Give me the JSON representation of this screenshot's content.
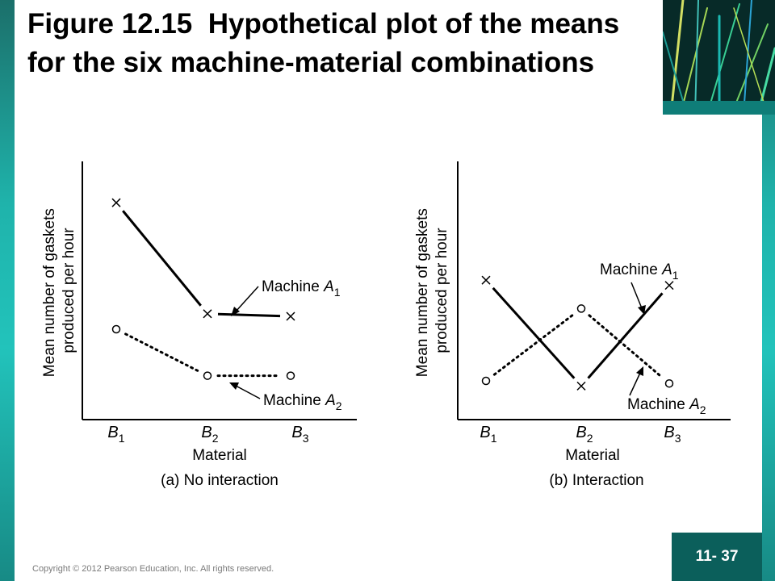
{
  "slide": {
    "title_bold": "Figure 12.15",
    "title_rest": "Hypothetical plot of the means for the six machine-material combinations",
    "page_number": "11- 37",
    "copyright": "Copyright © 2012 Pearson Education, Inc. All rights reserved."
  },
  "chart_data": [
    {
      "type": "line",
      "caption": "(a) No interaction",
      "xlabel": "Material",
      "ylabel": "Mean number of gaskets produced per hour",
      "categories": [
        {
          "letter": "B",
          "sub": "1"
        },
        {
          "letter": "B",
          "sub": "2"
        },
        {
          "letter": "B",
          "sub": "3"
        }
      ],
      "ylim": [
        0,
        10
      ],
      "series": [
        {
          "label_text": "Machine ",
          "label_letter": "A",
          "label_sub": "1",
          "marker": "x",
          "line": "solid",
          "values": [
            8.4,
            4.1,
            4.0
          ]
        },
        {
          "label_text": "Machine ",
          "label_letter": "A",
          "label_sub": "2",
          "marker": "o",
          "line": "dotted",
          "values": [
            3.5,
            1.7,
            1.7
          ]
        }
      ]
    },
    {
      "type": "line",
      "caption": "(b) Interaction",
      "xlabel": "Material",
      "ylabel": "Mean number of gaskets produced per hour",
      "categories": [
        {
          "letter": "B",
          "sub": "1"
        },
        {
          "letter": "B",
          "sub": "2"
        },
        {
          "letter": "B",
          "sub": "3"
        }
      ],
      "ylim": [
        0,
        10
      ],
      "series": [
        {
          "label_text": "Machine ",
          "label_letter": "A",
          "label_sub": "1",
          "marker": "x",
          "line": "solid",
          "values": [
            5.4,
            1.3,
            5.2
          ]
        },
        {
          "label_text": "Machine ",
          "label_letter": "A",
          "label_sub": "2",
          "marker": "o",
          "line": "dotted",
          "values": [
            1.5,
            4.3,
            1.4
          ]
        }
      ]
    }
  ],
  "colors": {
    "teal_frame": "#1fb3ab",
    "badge_bg": "#0b5f5b",
    "ink": "#000000"
  }
}
